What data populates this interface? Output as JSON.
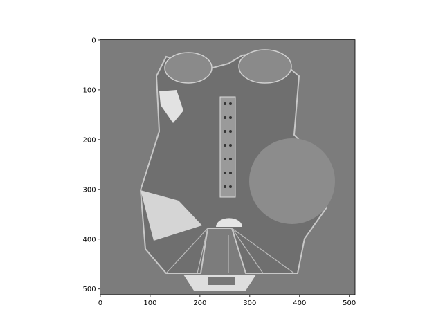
{
  "chart_data": {
    "type": "image",
    "xlim": [
      -0.5,
      511.5
    ],
    "ylim": [
      511.5,
      -0.5
    ],
    "xticks": [
      0,
      100,
      200,
      300,
      400,
      500
    ],
    "yticks": [
      0,
      100,
      200,
      300,
      400,
      500
    ],
    "colormap": "gray"
  }
}
